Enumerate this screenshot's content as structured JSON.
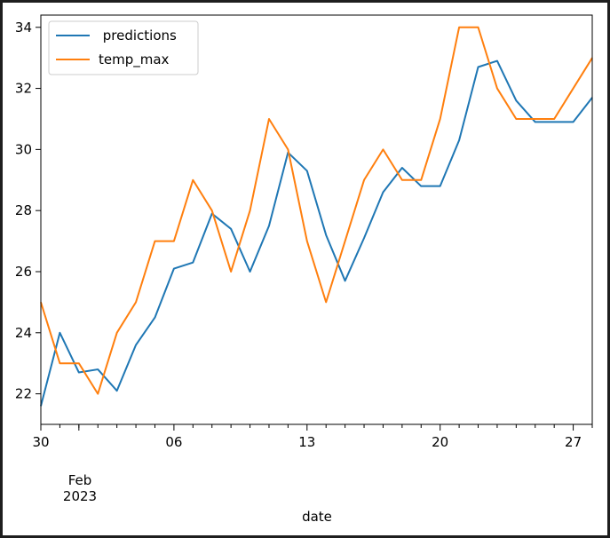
{
  "chart_data": {
    "type": "line",
    "title": "",
    "xlabel": "date",
    "ylabel": "",
    "x_ticks": [
      "30",
      "06",
      "13",
      "20",
      "27"
    ],
    "x_month_label": "Feb",
    "x_year_label": "2023",
    "ylim": [
      21,
      34.4
    ],
    "y_ticks": [
      22,
      24,
      26,
      28,
      30,
      32,
      34
    ],
    "grid": false,
    "legend": "top-left",
    "x": [
      "2023-01-30",
      "2023-01-31",
      "2023-02-01",
      "2023-02-02",
      "2023-02-03",
      "2023-02-04",
      "2023-02-05",
      "2023-02-06",
      "2023-02-07",
      "2023-02-08",
      "2023-02-09",
      "2023-02-10",
      "2023-02-11",
      "2023-02-12",
      "2023-02-13",
      "2023-02-14",
      "2023-02-15",
      "2023-02-16",
      "2023-02-17",
      "2023-02-18",
      "2023-02-19",
      "2023-02-20",
      "2023-02-21",
      "2023-02-22",
      "2023-02-23",
      "2023-02-24",
      "2023-02-25",
      "2023-02-26",
      "2023-02-27",
      "2023-02-28"
    ],
    "series": [
      {
        "name": " predictions",
        "color": "#1f77b4",
        "values": [
          21.6,
          24.0,
          22.7,
          22.8,
          22.1,
          23.6,
          24.5,
          26.1,
          26.3,
          27.9,
          27.4,
          26.0,
          27.5,
          29.9,
          29.3,
          27.2,
          25.7,
          27.1,
          28.6,
          29.4,
          28.8,
          28.8,
          30.3,
          32.7,
          32.9,
          31.6,
          30.9,
          30.9,
          30.9,
          31.7
        ]
      },
      {
        "name": "temp_max",
        "color": "#ff7f0e",
        "values": [
          25,
          23,
          23,
          22,
          24,
          25,
          27,
          27,
          29,
          28,
          26,
          28,
          31,
          30,
          27,
          25,
          27,
          29,
          30,
          29,
          29,
          31,
          34,
          34,
          32,
          31,
          31,
          31,
          32,
          33
        ]
      }
    ]
  }
}
